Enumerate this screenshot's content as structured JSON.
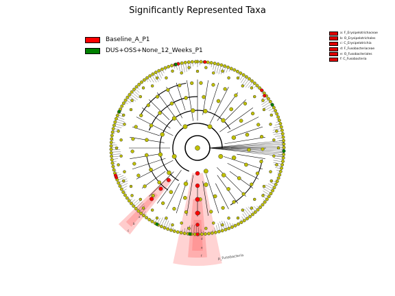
{
  "title": "Significantly Represented Taxa",
  "legend": [
    {
      "label": "Baseline_A_P1",
      "color": "#ff0000"
    },
    {
      "label": "DUS+OSS+None_12_Weeks_P1",
      "color": "#008000"
    }
  ],
  "taxa_key": [
    "a: F_Erysipelotrichaceae",
    "b: O_Erysipelotrichales",
    "c: C_Erysipelotrichia",
    "d: F_Fusobacteriaceae",
    "e: O_Fusobacteriales",
    "f: C_Fusobacteria"
  ],
  "highlight_labels": {
    "fuso_outer": "p_Fusobacteria",
    "fuso_letters": [
      "f",
      "e",
      "d"
    ],
    "erysi_letters": [
      "c",
      "b",
      "a"
    ]
  },
  "colors": {
    "node_default": "#bfbf00",
    "node_baseline": "#ff0000",
    "node_dus": "#008000",
    "highlight_fill": "#ff8080"
  }
}
